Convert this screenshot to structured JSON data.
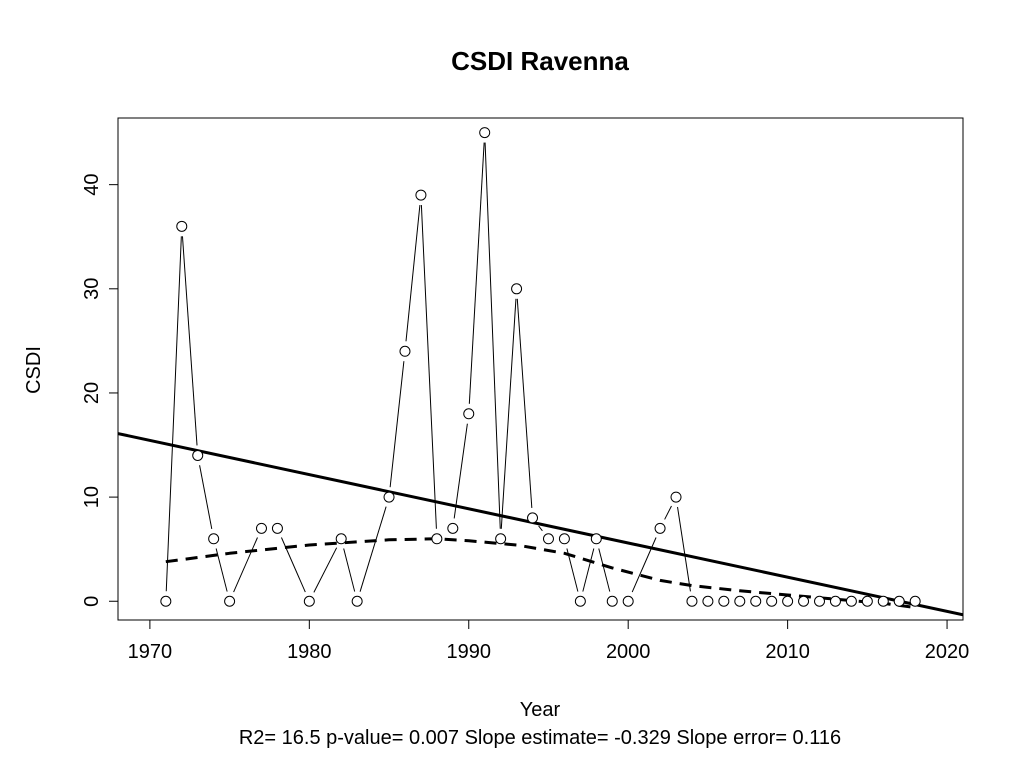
{
  "chart_data": {
    "type": "scatter",
    "title": "CSDI   Ravenna",
    "xlabel": "Year",
    "ylabel": "CSDI",
    "xlim": [
      1968,
      2021
    ],
    "ylim": [
      -1.8,
      46.4
    ],
    "xticks": [
      1970,
      1980,
      1990,
      2000,
      2010,
      2020
    ],
    "yticks": [
      0,
      10,
      20,
      30,
      40
    ],
    "grid": false,
    "legend": "none",
    "points": {
      "x": [
        1971,
        1972,
        1973,
        1974,
        1975,
        1977,
        1978,
        1980,
        1982,
        1983,
        1985,
        1986,
        1987,
        1988,
        1989,
        1990,
        1991,
        1992,
        1993,
        1994,
        1995,
        1996,
        1997,
        1998,
        1999,
        2000,
        2002,
        2003,
        2004,
        2005,
        2006,
        2007,
        2008,
        2009,
        2010,
        2011,
        2012,
        2013,
        2014,
        2015,
        2016,
        2017,
        2018
      ],
      "y": [
        0,
        36,
        14,
        6,
        0,
        7,
        7,
        0,
        6,
        0,
        10,
        24,
        39,
        6,
        7,
        18,
        45,
        6,
        30,
        8,
        6,
        6,
        0,
        6,
        0,
        0,
        7,
        10,
        0,
        0,
        0,
        0,
        0,
        0,
        0,
        0,
        0,
        0,
        0,
        0,
        0,
        0,
        0
      ]
    },
    "trend_line": {
      "x": [
        1968,
        2021
      ],
      "y": [
        16.1,
        -1.3
      ],
      "style": "solid"
    },
    "smooth_curve": {
      "style": "dashed",
      "x": [
        1971,
        1975,
        1980,
        1985,
        1988,
        1990,
        1993,
        1996,
        1999,
        2002,
        2004,
        2007,
        2010,
        2013,
        2016,
        2018
      ],
      "y": [
        3.8,
        4.6,
        5.4,
        5.9,
        6.0,
        5.8,
        5.4,
        4.6,
        3.2,
        2.0,
        1.5,
        1.0,
        0.6,
        0.2,
        -0.2,
        -0.6
      ]
    },
    "footer": "R2= 16.5  p-value= 0.007  Slope estimate= -0.329  Slope error= 0.116",
    "colors": {
      "line": "#000000",
      "point_fill": "#ffffff",
      "background": "#ffffff"
    }
  }
}
